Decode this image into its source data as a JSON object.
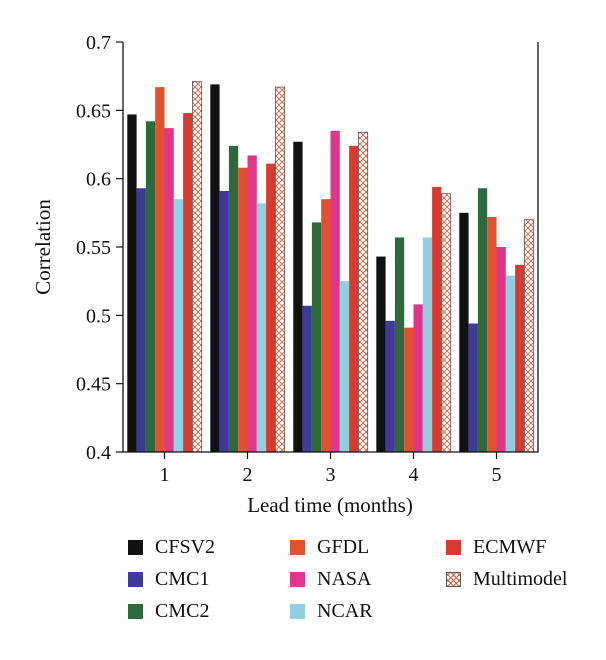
{
  "chart_data": {
    "type": "bar",
    "xlabel": "Lead time (months)",
    "ylabel": "Correlation",
    "ylim": [
      0.4,
      0.7
    ],
    "yticks": [
      "0.4",
      "0.45",
      "0.5",
      "0.55",
      "0.6",
      "0.65",
      "0.7"
    ],
    "categories": [
      "1",
      "2",
      "3",
      "4",
      "5"
    ],
    "grid": false,
    "legend_position": "bottom",
    "series": [
      {
        "name": "CFSV2",
        "color": "#111111",
        "values": [
          0.647,
          0.669,
          0.627,
          0.543,
          0.575
        ]
      },
      {
        "name": "CMC1",
        "color": "#3d3a9c",
        "values": [
          0.593,
          0.591,
          0.507,
          0.496,
          0.494
        ]
      },
      {
        "name": "CMC2",
        "color": "#2c6a3c",
        "values": [
          0.642,
          0.624,
          0.568,
          0.557,
          0.593
        ]
      },
      {
        "name": "GFDL",
        "color": "#e2502c",
        "values": [
          0.667,
          0.608,
          0.585,
          0.491,
          0.572
        ]
      },
      {
        "name": "NASA",
        "color": "#e0368a",
        "values": [
          0.637,
          0.617,
          0.635,
          0.508,
          0.55
        ]
      },
      {
        "name": "NCAR",
        "color": "#8fcfe2",
        "values": [
          0.585,
          0.582,
          0.525,
          0.557,
          0.529
        ]
      },
      {
        "name": "ECMWF",
        "color": "#d93a30",
        "values": [
          0.648,
          0.611,
          0.624,
          0.594,
          0.537
        ]
      },
      {
        "name": "Multimodel",
        "color": "#ffffff",
        "pattern": "crosshatch",
        "values": [
          0.671,
          0.667,
          0.634,
          0.589,
          0.57
        ]
      }
    ]
  }
}
